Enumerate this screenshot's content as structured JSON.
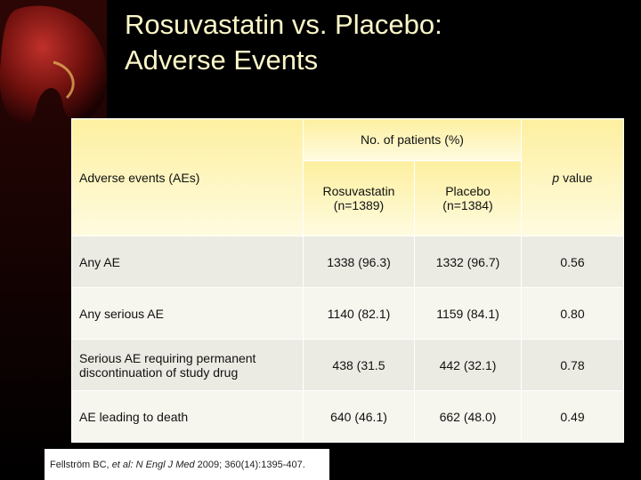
{
  "title": {
    "line1": "Rosuvastatin vs. Placebo:",
    "line2": "Adverse Events"
  },
  "table": {
    "header": {
      "group": "No. of patients (%)",
      "first": "Adverse events (AEs)",
      "pvalue_italic": "p",
      "pvalue_rest": " value",
      "columns": [
        [
          "Rosuvastatin",
          "(n=1389)"
        ],
        [
          "Placebo",
          "(n=1384)"
        ]
      ]
    },
    "rows": [
      [
        [
          "Any AE"
        ],
        "1338 (96.3)",
        "1332 (96.7)",
        "0.56"
      ],
      [
        [
          "Any serious AE"
        ],
        "1140 (82.1)",
        "1159 (84.1)",
        "0.80"
      ],
      [
        [
          "Serious AE requiring permanent",
          "discontinuation of study drug"
        ],
        "438 (31.5",
        "442 (32.1)",
        "0.78"
      ],
      [
        [
          "AE leading to death"
        ],
        "640 (46.1)",
        "662 (48.0)",
        "0.49"
      ]
    ]
  },
  "footnote": [
    "Fellström BC, ",
    "et al: N Engl J Med",
    " 2009; 360(14):1395-407."
  ]
}
